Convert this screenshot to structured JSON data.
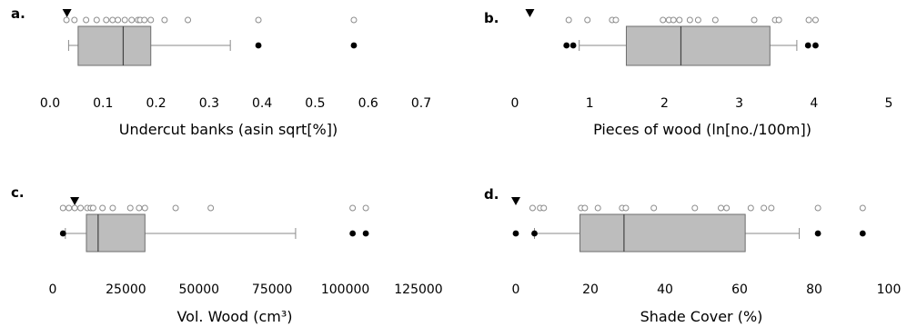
{
  "chart_data": [
    {
      "type": "boxplot",
      "panel_label": "a.",
      "xlabel": "Undercut banks (asin sqrt[%])",
      "xlim": [
        0,
        0.7
      ],
      "xticks": [
        "0.0",
        "0.1",
        "0.2",
        "0.3",
        "0.4",
        "0.5",
        "0.6",
        "0.7"
      ],
      "tick_values": [
        0,
        0.1,
        0.2,
        0.3,
        0.4,
        0.5,
        0.6,
        0.7
      ],
      "box": {
        "whisker_low": 0.035,
        "q1": 0.053,
        "median": 0.138,
        "q3": 0.19,
        "whisker_high": 0.34
      },
      "outliers": [
        0.393,
        0.573
      ],
      "open_points": [
        0.031,
        0.046,
        0.068,
        0.088,
        0.106,
        0.118,
        0.128,
        0.141,
        0.154,
        0.166,
        0.17,
        0.178,
        0.19,
        0.216,
        0.26,
        0.393,
        0.573
      ],
      "marker": 0.032
    },
    {
      "type": "boxplot",
      "panel_label": "b.",
      "xlabel": "Pieces of wood (ln[no./100m])",
      "xlim": [
        0,
        5
      ],
      "xticks": [
        "0",
        "1",
        "2",
        "3",
        "4",
        "5"
      ],
      "tick_values": [
        0,
        1,
        2,
        3,
        4,
        5
      ],
      "box": {
        "whisker_low": 0.86,
        "q1": 1.49,
        "median": 2.22,
        "q3": 3.41,
        "whisker_high": 3.77
      },
      "outliers": [
        0.69,
        0.78,
        3.92,
        4.02
      ],
      "open_points": [
        0.72,
        0.97,
        1.3,
        1.35,
        1.98,
        2.06,
        2.12,
        2.2,
        2.34,
        2.45,
        2.68,
        3.2,
        3.48,
        3.53,
        3.93,
        4.02
      ],
      "marker": 0.2
    },
    {
      "type": "boxplot",
      "panel_label": "c.",
      "xlabel": "Vol. Wood (cm³)",
      "xlim": [
        0,
        125000
      ],
      "xticks": [
        "0",
        "25000",
        "50000",
        "75000",
        "100000",
        "125000"
      ],
      "tick_values": [
        0,
        25000,
        50000,
        75000,
        100000,
        125000
      ],
      "box": {
        "whisker_low": 4300,
        "q1": 11500,
        "median": 15500,
        "q3": 31500,
        "whisker_high": 83000
      },
      "outliers": [
        3500,
        102500,
        107000
      ],
      "open_points": [
        3500,
        5500,
        7500,
        9500,
        11800,
        13000,
        13800,
        17000,
        20500,
        26500,
        29500,
        31500,
        42000,
        54000,
        102500,
        107000
      ],
      "marker": 7500
    },
    {
      "type": "boxplot",
      "panel_label": "d.",
      "xlabel": "Shade Cover (%)",
      "xlim": [
        0,
        100
      ],
      "xticks": [
        "0",
        "20",
        "40",
        "60",
        "80",
        "100"
      ],
      "tick_values": [
        0,
        20,
        40,
        60,
        80,
        100
      ],
      "box": {
        "whisker_low": 5,
        "q1": 17.2,
        "median": 29,
        "q3": 61.5,
        "whisker_high": 76
      },
      "outliers": [
        0,
        5,
        81,
        93
      ],
      "open_points": [
        4.5,
        6.5,
        7.5,
        17.5,
        18.5,
        22,
        28.5,
        29.5,
        37,
        48,
        55,
        56.5,
        63,
        66.5,
        68.5,
        81,
        93
      ],
      "marker": 0
    }
  ]
}
